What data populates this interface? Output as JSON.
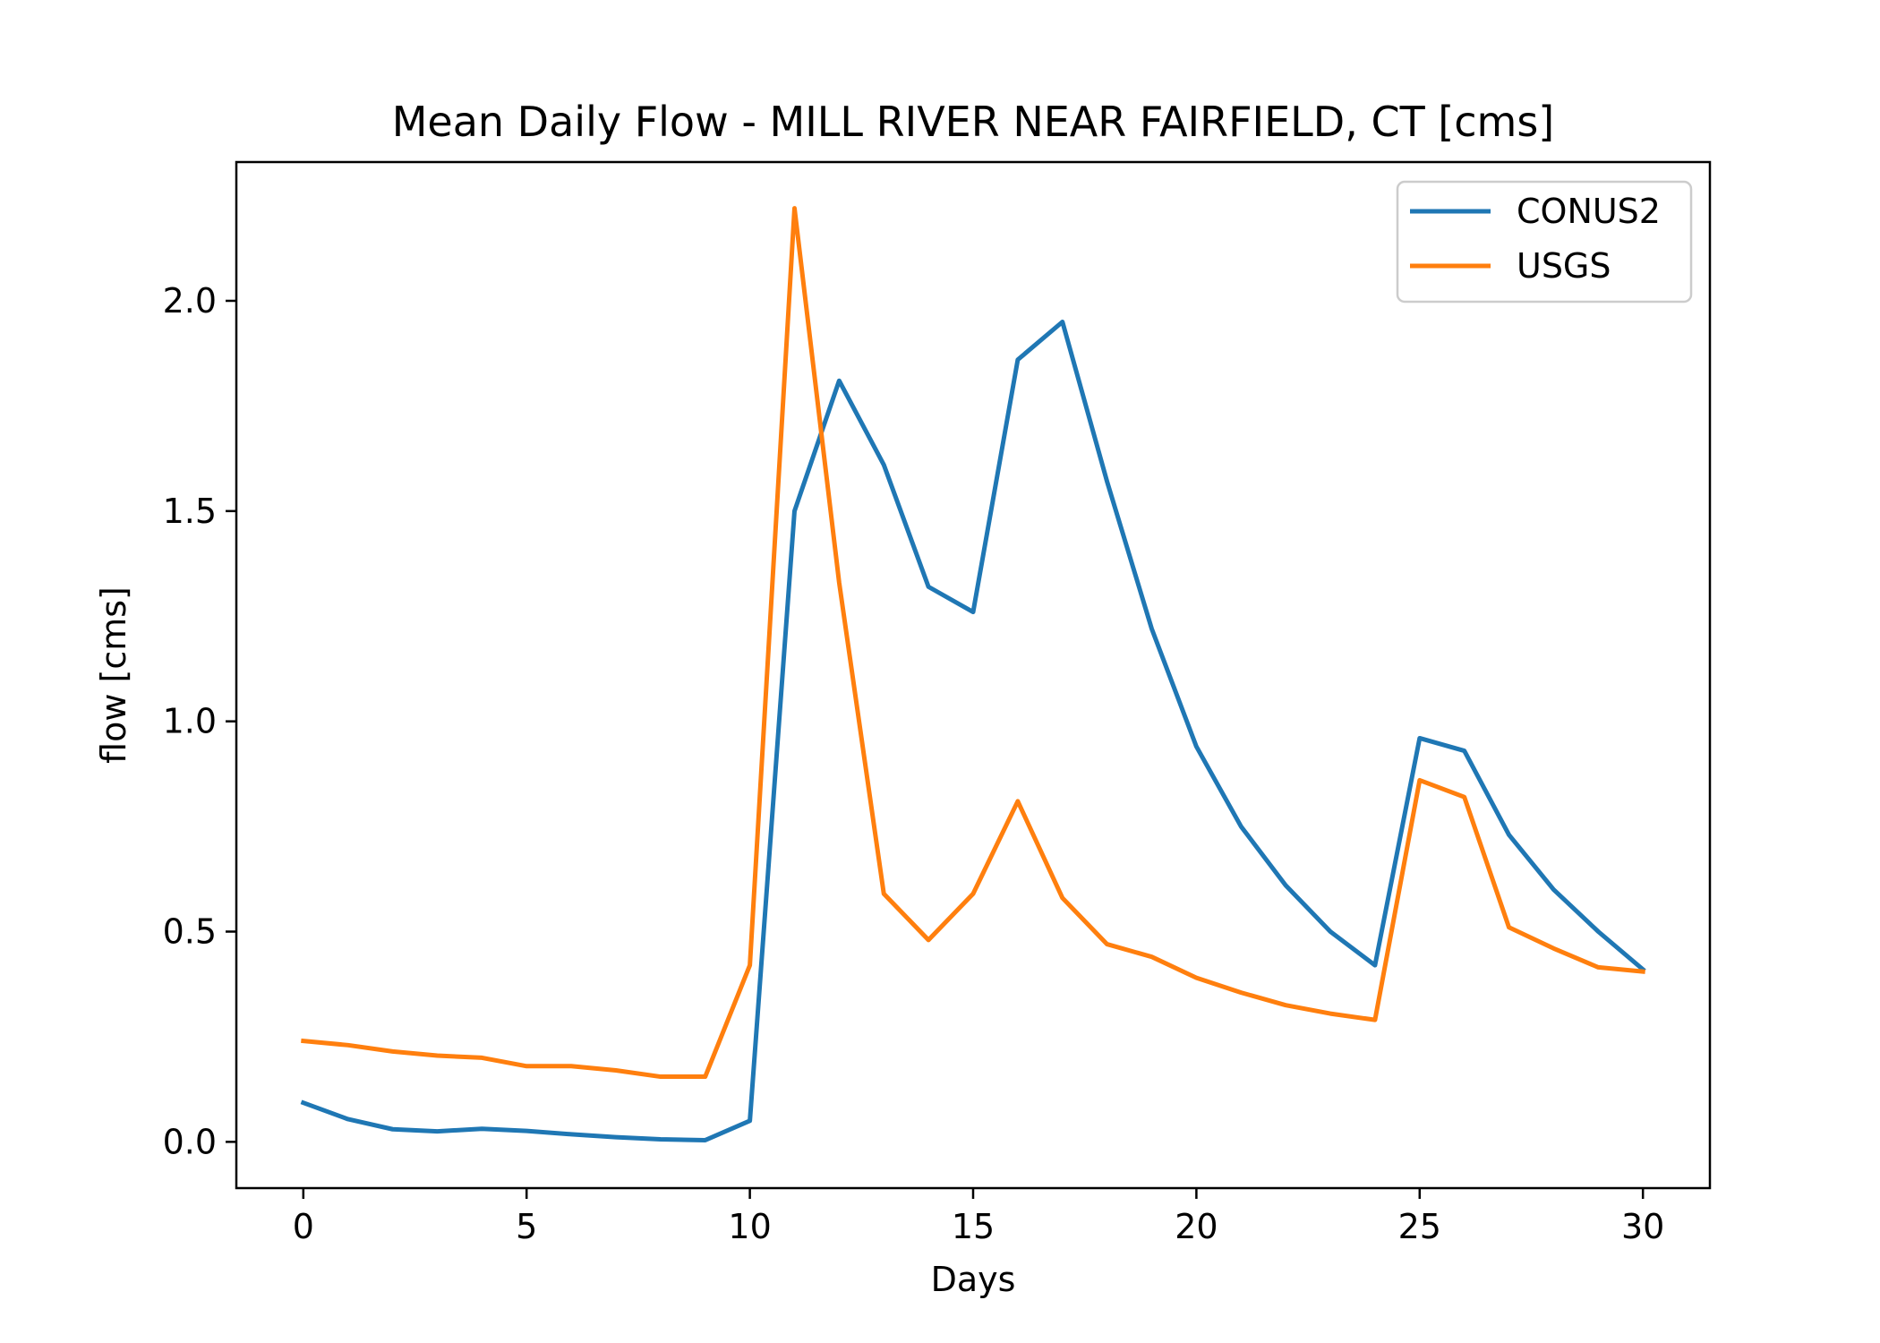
{
  "chart_data": {
    "type": "line",
    "title": "Mean Daily Flow - MILL RIVER NEAR FAIRFIELD, CT [cms]",
    "xlabel": "Days",
    "ylabel": "flow [cms]",
    "xlim": [
      -1.5,
      31.5
    ],
    "ylim": [
      -0.11,
      2.33
    ],
    "xticks": [
      0,
      5,
      10,
      15,
      20,
      25,
      30
    ],
    "xtick_labels": [
      "0",
      "5",
      "10",
      "15",
      "20",
      "25",
      "30"
    ],
    "yticks": [
      0.0,
      0.5,
      1.0,
      1.5,
      2.0
    ],
    "ytick_labels": [
      "0.0",
      "0.5",
      "1.0",
      "1.5",
      "2.0"
    ],
    "grid": false,
    "legend_position": "upper right",
    "x": [
      0,
      1,
      2,
      3,
      4,
      5,
      6,
      7,
      8,
      9,
      10,
      11,
      12,
      13,
      14,
      15,
      16,
      17,
      18,
      19,
      20,
      21,
      22,
      23,
      24,
      25,
      26,
      27,
      28,
      29,
      30
    ],
    "series": [
      {
        "name": "CONUS2",
        "color": "#1f77b4",
        "values": [
          0.093,
          0.054,
          0.03,
          0.025,
          0.031,
          0.026,
          0.018,
          0.011,
          0.006,
          0.004,
          0.05,
          1.5,
          1.81,
          1.61,
          1.32,
          1.26,
          1.86,
          1.95,
          1.57,
          1.22,
          0.94,
          0.75,
          0.61,
          0.5,
          0.42,
          0.96,
          0.93,
          0.73,
          0.6,
          0.5,
          0.41
        ]
      },
      {
        "name": "USGS",
        "color": "#ff7f0e",
        "values": [
          0.24,
          0.23,
          0.215,
          0.205,
          0.2,
          0.18,
          0.18,
          0.17,
          0.155,
          0.155,
          0.42,
          2.22,
          1.33,
          0.59,
          0.48,
          0.59,
          0.81,
          0.58,
          0.47,
          0.44,
          0.39,
          0.355,
          0.325,
          0.305,
          0.29,
          0.86,
          0.82,
          0.51,
          0.46,
          0.415,
          0.405
        ]
      }
    ]
  }
}
